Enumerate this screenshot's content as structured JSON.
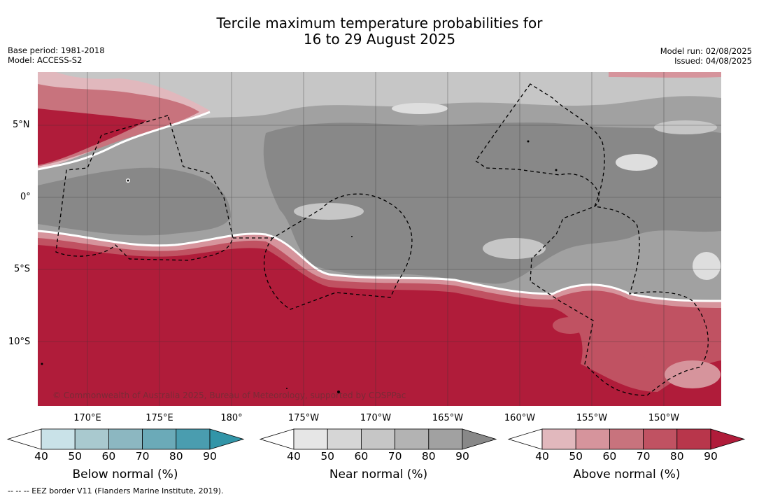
{
  "title_line1": "Tercile maximum temperature probabilities for",
  "title_line2": "16 to 29 August 2025",
  "meta_left": [
    "Base period: 1981-2018",
    "Model: ACCESS-S2"
  ],
  "meta_right": [
    "Model run: 02/08/2025",
    "Issued: 04/08/2025"
  ],
  "lat_labels": [
    "5°N",
    "0°",
    "5°S",
    "10°S"
  ],
  "lon_labels": [
    "170°E",
    "175°E",
    "180°",
    "175°W",
    "170°W",
    "165°W",
    "160°W",
    "155°W",
    "150°W"
  ],
  "copyright": "© Commonwealth of Australia 2025, Bureau of Meteorology, supported by COSPPac",
  "colorbars": [
    {
      "label": "Below normal (%)",
      "ticks": [
        "40",
        "50",
        "60",
        "70",
        "80",
        "90"
      ],
      "colors": [
        "#ffffff",
        "#c9e2e8",
        "#a9c9cf",
        "#8cb7c1",
        "#6baab8",
        "#4a9daf",
        "#3295a8"
      ]
    },
    {
      "label": "Near normal (%)",
      "ticks": [
        "40",
        "50",
        "60",
        "70",
        "80",
        "90"
      ],
      "colors": [
        "#ffffff",
        "#e6e6e6",
        "#d6d6d6",
        "#c6c6c6",
        "#b3b3b3",
        "#a1a1a1",
        "#888888"
      ]
    },
    {
      "label": "Above normal (%)",
      "ticks": [
        "40",
        "50",
        "60",
        "70",
        "80",
        "90"
      ],
      "colors": [
        "#ffffff",
        "#e1b8bd",
        "#d6949c",
        "#c8737d",
        "#c05262",
        "#b8364b",
        "#b01c3a"
      ]
    }
  ],
  "footnote": "--  --  -- EEZ border V11 (Flanders Marine Institute, 2019).",
  "map_colors": {
    "near_dark": "#888888",
    "near_mid": "#a1a1a1",
    "near_light": "#c6c6c6",
    "near_pale": "#dedede",
    "above_dark": "#b01c3a",
    "above_mid": "#c05262",
    "above_light": "#d6949c",
    "above_pale": "#e1b8bd"
  }
}
